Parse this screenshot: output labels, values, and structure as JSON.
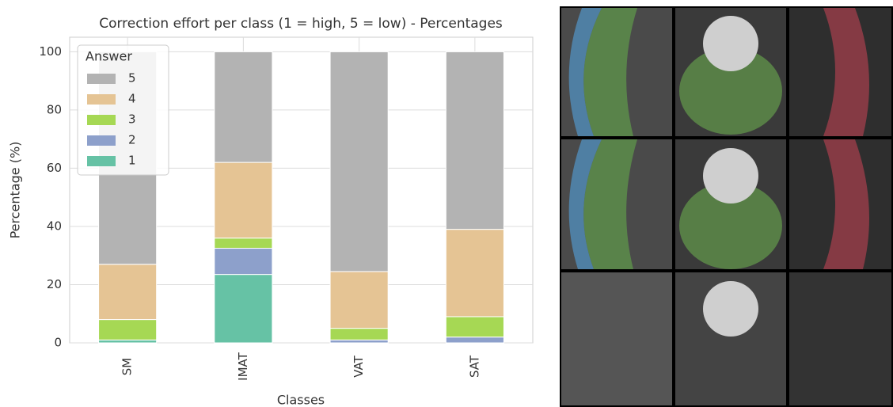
{
  "chart_data": {
    "type": "stacked_bar",
    "title": "Correction effort per class (1 = high, 5 = low) - Percentages",
    "x_label": "Classes",
    "y_label": "Percentage (%)",
    "categories": [
      "SM",
      "IMAT",
      "VAT",
      "SAT"
    ],
    "legend_title": "Answer",
    "series": [
      {
        "name": "1",
        "color": "#66c2a5",
        "values": [
          1,
          23.5,
          0,
          0
        ]
      },
      {
        "name": "2",
        "color": "#8da0cb",
        "values": [
          0,
          9,
          1,
          2
        ]
      },
      {
        "name": "3",
        "color": "#a6d854",
        "values": [
          7,
          3.5,
          4,
          7
        ]
      },
      {
        "name": "4",
        "color": "#e5c494",
        "values": [
          19,
          26,
          19.5,
          30
        ]
      },
      {
        "name": "5",
        "color": "#b3b3b3",
        "values": [
          73,
          38,
          75.5,
          61
        ]
      }
    ],
    "ylim": [
      0,
      105
    ],
    "yticks": [
      0,
      20,
      40,
      60,
      80,
      100
    ],
    "grid": true,
    "legend": "upper left"
  }
}
